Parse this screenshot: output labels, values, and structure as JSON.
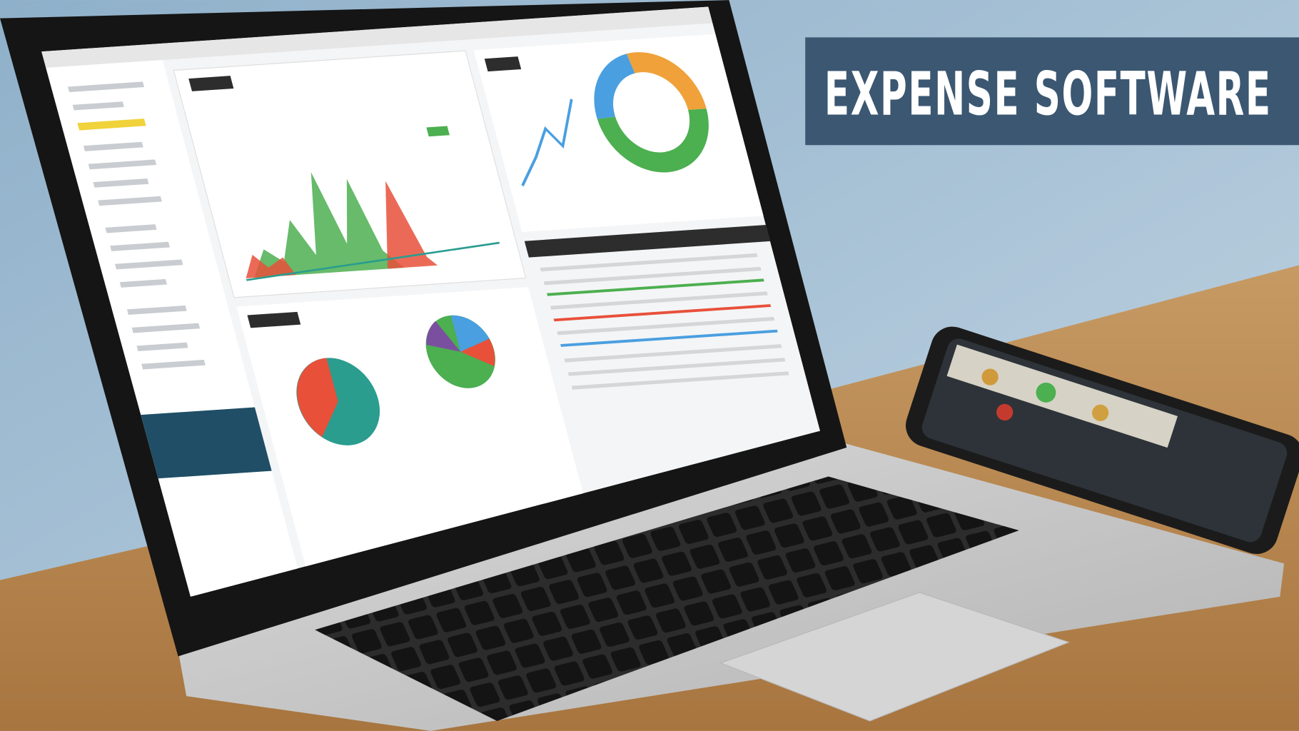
{
  "banner": {
    "title": "EXPENSE SOFTWARE",
    "background_color": "#3b5772",
    "text_color": "#ffffff"
  },
  "scene": {
    "wall_color": "#a9c2d6",
    "desk_color": "#b9864f",
    "laptop_color": "#c9c9c9",
    "screen_background": "#f4f5f6",
    "sidebar_accent": "#1f4e66",
    "chart_colors": [
      "#4caf50",
      "#e8503a",
      "#f0a13a",
      "#4a9fe0",
      "#2a9d8f",
      "#7b4fa0"
    ]
  }
}
